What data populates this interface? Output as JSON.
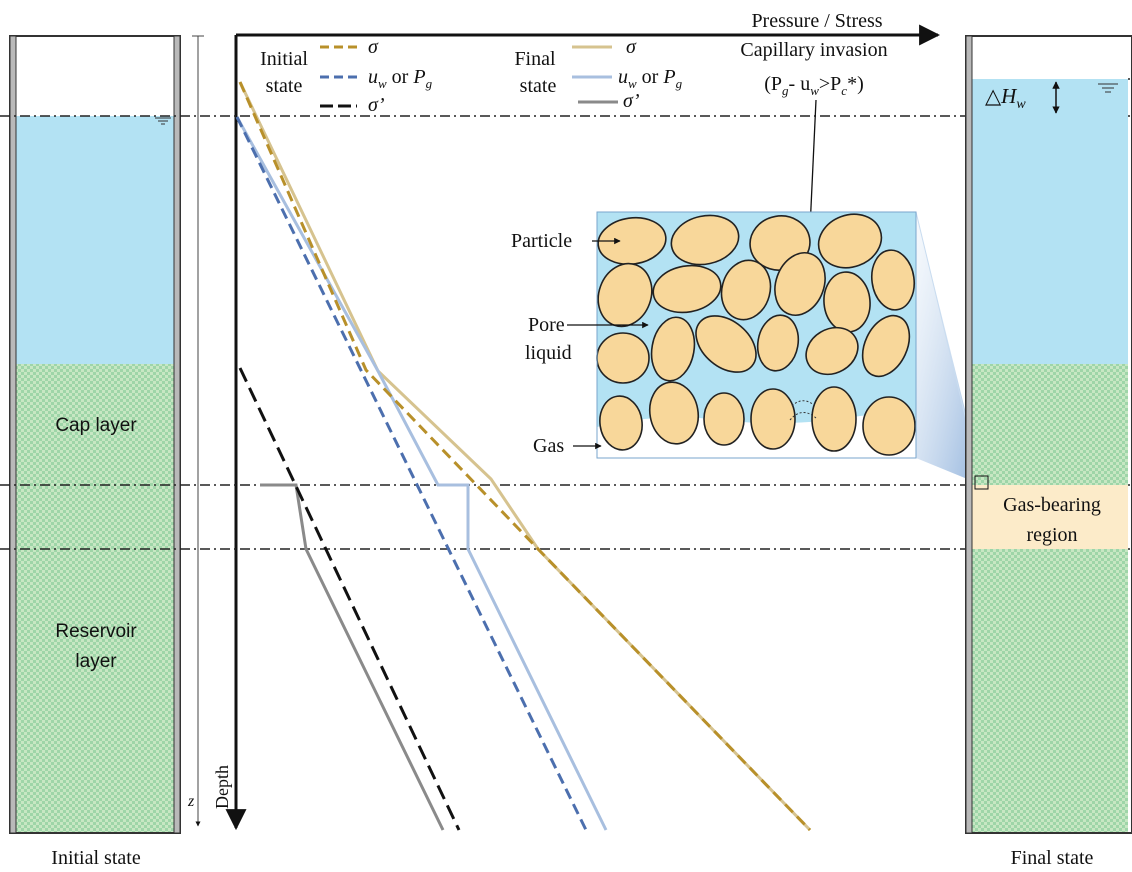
{
  "axes": {
    "pressure_label": "Pressure / Stress",
    "depth_label": "Depth",
    "z_label": "z"
  },
  "legend": {
    "initial": {
      "title_line1": "Initial",
      "title_line2": "state",
      "sigma": "σ",
      "uw_prefix": "u",
      "uw_sub": "w",
      "uw_or": " or ",
      "pg_prefix": "P",
      "pg_sub": "g",
      "sigma_eff": "σ’"
    },
    "final": {
      "title_line1": "Final",
      "title_line2": "state",
      "sigma": "σ",
      "uw_prefix": "u",
      "uw_sub": "w",
      "uw_or": " or ",
      "pg_prefix": "P",
      "pg_sub": "g",
      "sigma_eff": "σ’"
    }
  },
  "capillary": {
    "title": "Capillary invasion",
    "cond_open": "(P",
    "cond_g": "g",
    "cond_mid": "- u",
    "cond_w": "w",
    "cond_gt": ">P",
    "cond_c": "c",
    "cond_close": "*)"
  },
  "inset": {
    "particle": "Particle",
    "pore_line1": "Pore",
    "pore_line2": "liquid",
    "gas": "Gas"
  },
  "left_column": {
    "cap_layer": "Cap layer",
    "reservoir_line1": "Reservoir",
    "reservoir_line2": "layer",
    "caption": "Initial state"
  },
  "right_column": {
    "delta_h_symbol": "△H",
    "delta_h_sub": "w",
    "gas_region_line1": "Gas-bearing",
    "gas_region_line2": "region",
    "caption": "Final state"
  },
  "colors": {
    "water": "#b3e2f3",
    "soil": "#9ed5a8",
    "soil_dot": "#c7e7c3",
    "gas_region": "#fcebc9",
    "particle_fill": "#f8d79a",
    "sigma_initial": "#b8902a",
    "uw_initial": "#4c6fae",
    "sigma_eff_initial": "#111111",
    "sigma_final": "#d6c38f",
    "uw_final": "#a8bfdf",
    "sigma_eff_final": "#8a8a8a"
  }
}
